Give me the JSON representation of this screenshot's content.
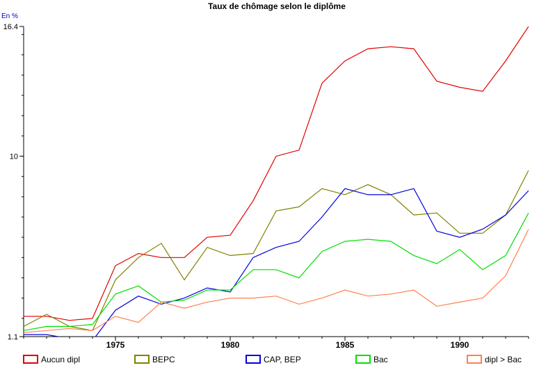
{
  "chart_data": {
    "type": "line",
    "title": "Taux de chômage selon le diplôme",
    "unit_label": "En %",
    "xlabel": "",
    "ylabel": "",
    "xlim": [
      1971,
      1993
    ],
    "ylim": [
      1.1,
      16.4
    ],
    "x_ticks": [
      1975,
      1980,
      1985,
      1990
    ],
    "y_ticks": [
      1.1,
      10,
      16.4
    ],
    "y_tick_labels": [
      "1.1",
      "10",
      "16.4"
    ],
    "grid": false,
    "legend_position": "bottom",
    "x": [
      1971,
      1972,
      1973,
      1974,
      1975,
      1976,
      1977,
      1978,
      1979,
      1980,
      1981,
      1982,
      1983,
      1984,
      1985,
      1986,
      1987,
      1988,
      1989,
      1990,
      1991,
      1992,
      1993
    ],
    "series": [
      {
        "name": "Aucun dipl",
        "color": "#e00000",
        "values": [
          2.1,
          2.1,
          1.9,
          2.0,
          4.6,
          5.2,
          5.0,
          5.0,
          6.0,
          6.1,
          7.8,
          10.0,
          10.3,
          13.6,
          14.7,
          15.3,
          15.4,
          15.3,
          13.7,
          13.4,
          13.2,
          14.7,
          16.4
        ]
      },
      {
        "name": "BEPC",
        "color": "#808000",
        "values": [
          1.6,
          2.2,
          1.6,
          1.4,
          3.9,
          5.0,
          5.7,
          3.9,
          5.5,
          5.1,
          5.2,
          7.3,
          7.5,
          8.4,
          8.1,
          8.6,
          8.1,
          7.1,
          7.2,
          6.2,
          6.2,
          7.1,
          9.3
        ]
      },
      {
        "name": "CAP, BEP",
        "color": "#0000e0",
        "values": [
          1.2,
          1.2,
          1.0,
          0.9,
          2.4,
          3.1,
          2.7,
          3.0,
          3.5,
          3.3,
          5.0,
          5.5,
          5.8,
          7.0,
          8.4,
          8.1,
          8.1,
          8.4,
          6.3,
          6.0,
          6.4,
          7.1,
          8.3
        ]
      },
      {
        "name": "Bac",
        "color": "#00e000",
        "values": [
          1.4,
          1.6,
          1.6,
          1.7,
          3.2,
          3.6,
          2.8,
          2.9,
          3.4,
          3.4,
          4.4,
          4.4,
          4.0,
          5.3,
          5.8,
          5.9,
          5.8,
          5.1,
          4.7,
          5.4,
          4.4,
          5.1,
          7.2
        ]
      },
      {
        "name": "dipl > Bac",
        "color": "#ff8050",
        "values": [
          1.3,
          1.4,
          1.5,
          1.4,
          2.1,
          1.8,
          2.8,
          2.5,
          2.8,
          3.0,
          3.0,
          3.1,
          2.7,
          3.0,
          3.4,
          3.1,
          3.2,
          3.4,
          2.6,
          2.8,
          3.0,
          4.1,
          6.4
        ]
      }
    ]
  }
}
